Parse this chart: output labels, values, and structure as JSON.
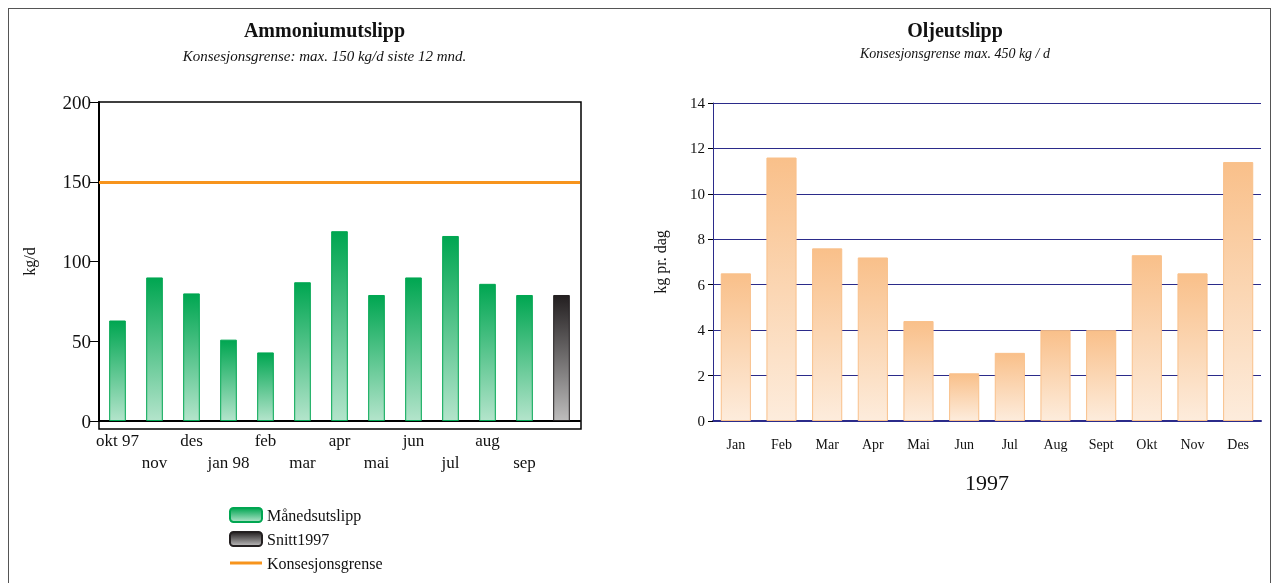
{
  "chart_data": [
    {
      "type": "bar",
      "title": "Ammoniumutslipp",
      "subtitle": "Konsesjonsgrense: max. 150 kg/d siste 12 mnd.",
      "ylabel": "kg/d",
      "categories": [
        "okt 97",
        "nov",
        "des",
        "jan 98",
        "feb",
        "mar",
        "apr",
        "mai",
        "jun",
        "jul",
        "aug",
        "sep",
        null
      ],
      "series": [
        {
          "name": "Månedsutslipp",
          "color": "#00a651",
          "values": [
            63,
            90,
            80,
            51,
            43,
            87,
            119,
            79,
            90,
            116,
            86,
            79,
            null
          ]
        },
        {
          "name": "Snitt1997",
          "color": "#231f20",
          "values": [
            null,
            null,
            null,
            null,
            null,
            null,
            null,
            null,
            null,
            null,
            null,
            null,
            79
          ]
        }
      ],
      "ref_lines": [
        {
          "axis": "y",
          "value": 150,
          "label": "Konsesjonsgrense",
          "color": "#f7941d"
        }
      ],
      "ylim": [
        0,
        200
      ],
      "yticks": [
        0,
        50,
        100,
        150,
        200
      ],
      "grid": false,
      "legend": "bottom"
    },
    {
      "type": "bar",
      "title": "Oljeutslipp",
      "subtitle": "Konsesjonsgrense max. 450 kg / d",
      "ylabel": "kg pr. dag",
      "xlabel": "1997",
      "categories": [
        "Jan",
        "Feb",
        "Mar",
        "Apr",
        "Mai",
        "Jun",
        "Jul",
        "Aug",
        "Sept",
        "Okt",
        "Nov",
        "Des"
      ],
      "values": [
        6.5,
        11.6,
        7.6,
        7.2,
        4.4,
        2.1,
        3.0,
        4.0,
        4.0,
        7.3,
        6.5,
        11.4
      ],
      "color": "#f9c08a",
      "ylim": [
        0,
        14
      ],
      "yticks": [
        0,
        2,
        4,
        6,
        8,
        10,
        12,
        14
      ],
      "grid": "y",
      "legend": false
    }
  ]
}
